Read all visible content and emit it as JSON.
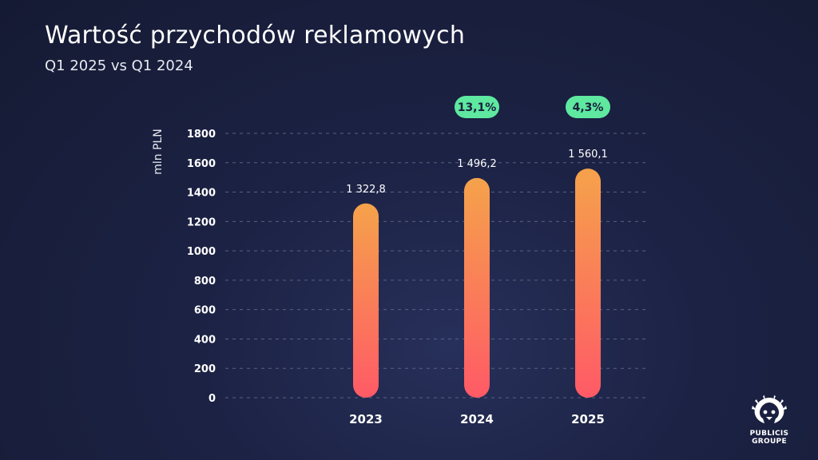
{
  "header": {
    "title": "Wartość przychodów reklamowych",
    "subtitle": "Q1 2025 vs Q1 2024"
  },
  "chart_data": {
    "type": "bar",
    "categories": [
      "2023",
      "2024",
      "2025"
    ],
    "values": [
      1322.8,
      1496.2,
      1560.1
    ],
    "value_labels": [
      "1 322,8",
      "1 496,2",
      "1 560,1"
    ],
    "growth_badges": [
      "",
      "13,1%",
      "4,3%"
    ],
    "ylabel": "mln PLN",
    "ylim": [
      0,
      1800
    ],
    "yticks": [
      0,
      200,
      400,
      600,
      800,
      1000,
      1200,
      1400,
      1600,
      1800
    ],
    "grid": true,
    "colors": {
      "bar_top": "#f5a24b",
      "bar_bottom": "#ff5a66",
      "badge": "#5ee8a0",
      "grid": "#5a6080"
    }
  },
  "logo": {
    "line1": "PUBLICIS",
    "line2": "GROUPE",
    "icon": "lion-head-icon"
  }
}
